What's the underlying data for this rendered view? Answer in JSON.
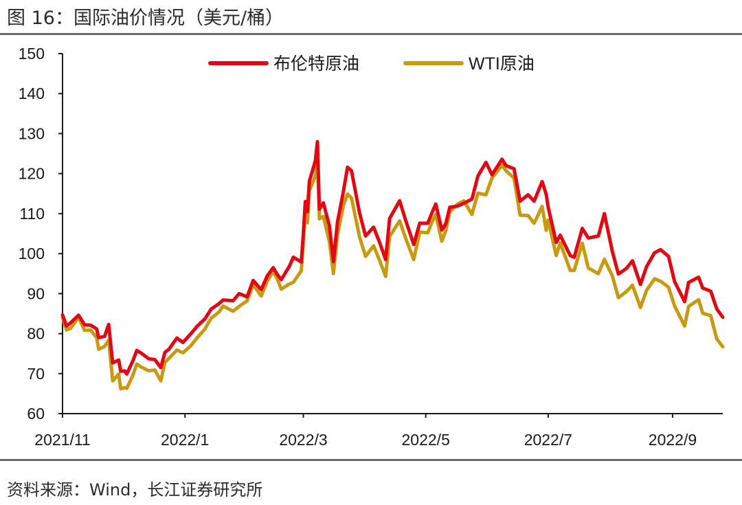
{
  "figure": {
    "title": "图 16：国际油价情况（美元/桶）",
    "source": "资料来源：Wind，长江证券研究所"
  },
  "chart_data": {
    "type": "line",
    "title": "",
    "xlabel": "",
    "ylabel": "",
    "ylim": [
      60,
      150
    ],
    "yticks": [
      60,
      70,
      80,
      90,
      100,
      110,
      120,
      130,
      140,
      150
    ],
    "xlim": [
      "2021-11-01",
      "2022-09-26"
    ],
    "xticks": [
      {
        "date": "2021-11-01",
        "label": "2021/11"
      },
      {
        "date": "2022-01-01",
        "label": "2022/1"
      },
      {
        "date": "2022-03-01",
        "label": "2022/3"
      },
      {
        "date": "2022-05-01",
        "label": "2022/5"
      },
      {
        "date": "2022-07-01",
        "label": "2022/7"
      },
      {
        "date": "2022-09-01",
        "label": "2022/9"
      }
    ],
    "grid": false,
    "legend": "top",
    "series": [
      {
        "name": "布伦特原油",
        "color": "#e30613",
        "points": [
          [
            "2021-11-01",
            84.7
          ],
          [
            "2021-11-03",
            81.9
          ],
          [
            "2021-11-05",
            82.7
          ],
          [
            "2021-11-09",
            84.6
          ],
          [
            "2021-11-12",
            82.2
          ],
          [
            "2021-11-15",
            82.1
          ],
          [
            "2021-11-18",
            81.2
          ],
          [
            "2021-11-19",
            79.0
          ],
          [
            "2021-11-22",
            79.3
          ],
          [
            "2021-11-24",
            82.3
          ],
          [
            "2021-11-26",
            72.7
          ],
          [
            "2021-11-29",
            73.4
          ],
          [
            "2021-11-30",
            70.6
          ],
          [
            "2021-12-02",
            70.7
          ],
          [
            "2021-12-03",
            69.9
          ],
          [
            "2021-12-06",
            73.1
          ],
          [
            "2021-12-08",
            75.8
          ],
          [
            "2021-12-10",
            75.2
          ],
          [
            "2021-12-14",
            73.7
          ],
          [
            "2021-12-17",
            73.5
          ],
          [
            "2021-12-20",
            71.5
          ],
          [
            "2021-12-22",
            75.3
          ],
          [
            "2021-12-24",
            76.1
          ],
          [
            "2021-12-28",
            78.9
          ],
          [
            "2021-12-31",
            77.8
          ],
          [
            "2022-01-04",
            80.0
          ],
          [
            "2022-01-07",
            81.8
          ],
          [
            "2022-01-11",
            83.7
          ],
          [
            "2022-01-14",
            86.1
          ],
          [
            "2022-01-18",
            87.5
          ],
          [
            "2022-01-20",
            88.4
          ],
          [
            "2022-01-25",
            88.2
          ],
          [
            "2022-01-28",
            90.0
          ],
          [
            "2022-02-01",
            89.2
          ],
          [
            "2022-02-04",
            93.3
          ],
          [
            "2022-02-08",
            91.0
          ],
          [
            "2022-02-11",
            94.4
          ],
          [
            "2022-02-14",
            96.5
          ],
          [
            "2022-02-16",
            94.8
          ],
          [
            "2022-02-18",
            93.5
          ],
          [
            "2022-02-22",
            96.8
          ],
          [
            "2022-02-24",
            99.1
          ],
          [
            "2022-02-28",
            97.9
          ],
          [
            "2022-03-01",
            105.0
          ],
          [
            "2022-03-02",
            113.0
          ],
          [
            "2022-03-03",
            110.5
          ],
          [
            "2022-03-04",
            118.1
          ],
          [
            "2022-03-07",
            123.2
          ],
          [
            "2022-03-08",
            127.98
          ],
          [
            "2022-03-09",
            111.1
          ],
          [
            "2022-03-11",
            112.7
          ],
          [
            "2022-03-14",
            106.9
          ],
          [
            "2022-03-16",
            98.0
          ],
          [
            "2022-03-18",
            107.9
          ],
          [
            "2022-03-21",
            115.6
          ],
          [
            "2022-03-23",
            121.6
          ],
          [
            "2022-03-25",
            120.7
          ],
          [
            "2022-03-29",
            110.2
          ],
          [
            "2022-04-01",
            104.4
          ],
          [
            "2022-04-05",
            106.6
          ],
          [
            "2022-04-08",
            102.8
          ],
          [
            "2022-04-11",
            98.5
          ],
          [
            "2022-04-13",
            108.8
          ],
          [
            "2022-04-18",
            113.2
          ],
          [
            "2022-04-21",
            108.3
          ],
          [
            "2022-04-25",
            102.3
          ],
          [
            "2022-04-28",
            107.6
          ],
          [
            "2022-05-02",
            107.6
          ],
          [
            "2022-05-04",
            110.1
          ],
          [
            "2022-05-06",
            112.4
          ],
          [
            "2022-05-09",
            105.9
          ],
          [
            "2022-05-11",
            107.5
          ],
          [
            "2022-05-13",
            111.6
          ],
          [
            "2022-05-17",
            111.9
          ],
          [
            "2022-05-20",
            112.6
          ],
          [
            "2022-05-24",
            113.6
          ],
          [
            "2022-05-27",
            119.4
          ],
          [
            "2022-05-31",
            122.8
          ],
          [
            "2022-06-03",
            119.7
          ],
          [
            "2022-06-08",
            123.6
          ],
          [
            "2022-06-10",
            122.0
          ],
          [
            "2022-06-14",
            121.2
          ],
          [
            "2022-06-17",
            113.1
          ],
          [
            "2022-06-21",
            114.7
          ],
          [
            "2022-06-24",
            113.1
          ],
          [
            "2022-06-28",
            118.0
          ],
          [
            "2022-06-30",
            114.8
          ],
          [
            "2022-07-01",
            111.6
          ],
          [
            "2022-07-05",
            102.8
          ],
          [
            "2022-07-07",
            104.6
          ],
          [
            "2022-07-12",
            99.5
          ],
          [
            "2022-07-14",
            99.1
          ],
          [
            "2022-07-18",
            106.3
          ],
          [
            "2022-07-21",
            103.9
          ],
          [
            "2022-07-26",
            104.4
          ],
          [
            "2022-07-29",
            110.0
          ],
          [
            "2022-08-02",
            100.5
          ],
          [
            "2022-08-05",
            94.9
          ],
          [
            "2022-08-09",
            96.3
          ],
          [
            "2022-08-12",
            98.2
          ],
          [
            "2022-08-16",
            92.3
          ],
          [
            "2022-08-19",
            96.7
          ],
          [
            "2022-08-23",
            100.2
          ],
          [
            "2022-08-26",
            100.99
          ],
          [
            "2022-08-30",
            99.3
          ],
          [
            "2022-09-02",
            93.0
          ],
          [
            "2022-09-07",
            88.0
          ],
          [
            "2022-09-09",
            92.8
          ],
          [
            "2022-09-14",
            94.1
          ],
          [
            "2022-09-16",
            91.4
          ],
          [
            "2022-09-20",
            90.6
          ],
          [
            "2022-09-23",
            86.2
          ],
          [
            "2022-09-26",
            84.1
          ]
        ]
      },
      {
        "name": "WTI原油",
        "color": "#c79a12",
        "points": [
          [
            "2021-11-01",
            84.1
          ],
          [
            "2021-11-03",
            80.9
          ],
          [
            "2021-11-05",
            81.3
          ],
          [
            "2021-11-09",
            84.1
          ],
          [
            "2021-11-12",
            80.8
          ],
          [
            "2021-11-15",
            80.9
          ],
          [
            "2021-11-18",
            79.0
          ],
          [
            "2021-11-19",
            76.1
          ],
          [
            "2021-11-22",
            76.8
          ],
          [
            "2021-11-24",
            78.4
          ],
          [
            "2021-11-26",
            68.2
          ],
          [
            "2021-11-29",
            69.9
          ],
          [
            "2021-11-30",
            66.2
          ],
          [
            "2021-12-02",
            66.5
          ],
          [
            "2021-12-03",
            66.3
          ],
          [
            "2021-12-06",
            69.5
          ],
          [
            "2021-12-08",
            72.4
          ],
          [
            "2021-12-10",
            71.7
          ],
          [
            "2021-12-14",
            70.7
          ],
          [
            "2021-12-17",
            70.9
          ],
          [
            "2021-12-20",
            68.2
          ],
          [
            "2021-12-22",
            72.8
          ],
          [
            "2021-12-24",
            73.8
          ],
          [
            "2021-12-28",
            75.9
          ],
          [
            "2021-12-31",
            75.2
          ],
          [
            "2022-01-04",
            76.99
          ],
          [
            "2022-01-07",
            78.9
          ],
          [
            "2022-01-11",
            81.2
          ],
          [
            "2022-01-14",
            83.8
          ],
          [
            "2022-01-18",
            85.4
          ],
          [
            "2022-01-20",
            86.9
          ],
          [
            "2022-01-25",
            85.6
          ],
          [
            "2022-01-28",
            86.8
          ],
          [
            "2022-02-01",
            88.2
          ],
          [
            "2022-02-04",
            92.3
          ],
          [
            "2022-02-08",
            89.4
          ],
          [
            "2022-02-11",
            93.1
          ],
          [
            "2022-02-14",
            95.5
          ],
          [
            "2022-02-16",
            93.7
          ],
          [
            "2022-02-18",
            91.1
          ],
          [
            "2022-02-22",
            92.4
          ],
          [
            "2022-02-24",
            92.8
          ],
          [
            "2022-02-28",
            95.7
          ],
          [
            "2022-03-01",
            103.4
          ],
          [
            "2022-03-02",
            110.6
          ],
          [
            "2022-03-03",
            107.7
          ],
          [
            "2022-03-04",
            115.7
          ],
          [
            "2022-03-07",
            119.4
          ],
          [
            "2022-03-08",
            123.7
          ],
          [
            "2022-03-09",
            108.7
          ],
          [
            "2022-03-11",
            109.3
          ],
          [
            "2022-03-14",
            103.0
          ],
          [
            "2022-03-16",
            95.0
          ],
          [
            "2022-03-18",
            104.7
          ],
          [
            "2022-03-21",
            112.1
          ],
          [
            "2022-03-23",
            114.9
          ],
          [
            "2022-03-25",
            113.9
          ],
          [
            "2022-03-29",
            104.2
          ],
          [
            "2022-04-01",
            99.3
          ],
          [
            "2022-04-05",
            101.96
          ],
          [
            "2022-04-08",
            98.3
          ],
          [
            "2022-04-11",
            94.3
          ],
          [
            "2022-04-13",
            104.3
          ],
          [
            "2022-04-18",
            108.2
          ],
          [
            "2022-04-21",
            103.8
          ],
          [
            "2022-04-25",
            98.5
          ],
          [
            "2022-04-28",
            105.4
          ],
          [
            "2022-05-02",
            105.2
          ],
          [
            "2022-05-04",
            107.8
          ],
          [
            "2022-05-06",
            109.8
          ],
          [
            "2022-05-09",
            103.1
          ],
          [
            "2022-05-11",
            105.7
          ],
          [
            "2022-05-13",
            110.5
          ],
          [
            "2022-05-17",
            112.4
          ],
          [
            "2022-05-20",
            113.2
          ],
          [
            "2022-05-24",
            109.8
          ],
          [
            "2022-05-27",
            115.1
          ],
          [
            "2022-05-31",
            114.7
          ],
          [
            "2022-06-03",
            118.9
          ],
          [
            "2022-06-08",
            122.1
          ],
          [
            "2022-06-10",
            120.7
          ],
          [
            "2022-06-14",
            118.9
          ],
          [
            "2022-06-17",
            109.6
          ],
          [
            "2022-06-21",
            109.5
          ],
          [
            "2022-06-24",
            107.6
          ],
          [
            "2022-06-28",
            111.8
          ],
          [
            "2022-06-30",
            105.8
          ],
          [
            "2022-07-01",
            108.4
          ],
          [
            "2022-07-05",
            99.5
          ],
          [
            "2022-07-07",
            102.7
          ],
          [
            "2022-07-12",
            95.8
          ],
          [
            "2022-07-14",
            95.8
          ],
          [
            "2022-07-18",
            102.6
          ],
          [
            "2022-07-21",
            96.4
          ],
          [
            "2022-07-26",
            94.98
          ],
          [
            "2022-07-29",
            98.6
          ],
          [
            "2022-08-02",
            94.4
          ],
          [
            "2022-08-05",
            89.0
          ],
          [
            "2022-08-09",
            90.5
          ],
          [
            "2022-08-12",
            92.1
          ],
          [
            "2022-08-16",
            86.5
          ],
          [
            "2022-08-19",
            90.8
          ],
          [
            "2022-08-23",
            93.7
          ],
          [
            "2022-08-26",
            93.1
          ],
          [
            "2022-08-30",
            91.6
          ],
          [
            "2022-09-02",
            86.9
          ],
          [
            "2022-09-07",
            81.9
          ],
          [
            "2022-09-09",
            86.8
          ],
          [
            "2022-09-14",
            88.5
          ],
          [
            "2022-09-16",
            85.1
          ],
          [
            "2022-09-20",
            84.5
          ],
          [
            "2022-09-23",
            78.7
          ],
          [
            "2022-09-26",
            76.7
          ]
        ]
      }
    ]
  }
}
